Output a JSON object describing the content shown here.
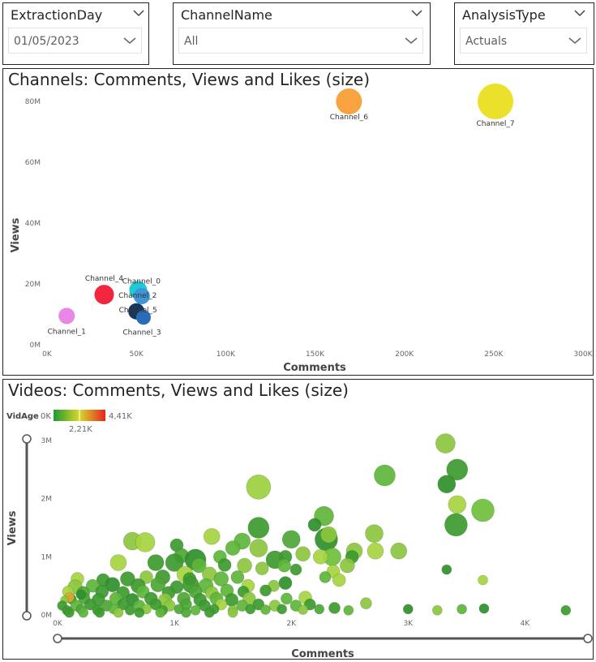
{
  "slicers": [
    {
      "title": "ExtractionDay",
      "value": "01/05/2023"
    },
    {
      "title": "ChannelName",
      "value": "All"
    },
    {
      "title": "AnalysisType",
      "value": "Actuals"
    }
  ],
  "chart1": {
    "title": "Channels: Comments, Views and Likes (size)"
  },
  "chart2": {
    "title": "Videos: Comments, Views and Likes (size)",
    "legend": {
      "field": "VidAge",
      "min_label": "0K",
      "mid_label": "2,21K",
      "max_label": "4,41K"
    }
  },
  "chart_data": [
    {
      "type": "scatter",
      "title": "Channels: Comments, Views and Likes (size)",
      "xlabel": "Comments",
      "ylabel": "Views",
      "xlim": [
        0,
        300000
      ],
      "ylim": [
        0,
        80000000
      ],
      "x_ticks": [
        "0K",
        "50K",
        "100K",
        "150K",
        "200K",
        "250K",
        "300K"
      ],
      "y_ticks": [
        "0M",
        "20M",
        "40M",
        "60M",
        "80M"
      ],
      "points": [
        {
          "label": "Channel_1",
          "x": 11000,
          "y": 9500000,
          "size": 10,
          "color": "#e986e6"
        },
        {
          "label": "Channel_4",
          "x": 32000,
          "y": 16500000,
          "size": 12,
          "color": "#f2263f"
        },
        {
          "label": "Channel_0",
          "x": 51000,
          "y": 18000000,
          "size": 11,
          "color": "#1fc9d6"
        },
        {
          "label": "Channel_2",
          "x": 53000,
          "y": 16000000,
          "size": 10,
          "color": "#3f95d6"
        },
        {
          "label": "Channel_5",
          "x": 50000,
          "y": 11000000,
          "size": 10,
          "color": "#17375a"
        },
        {
          "label": "Channel_3",
          "x": 54000,
          "y": 9000000,
          "size": 9,
          "color": "#2a6cb8"
        },
        {
          "label": "Channel_6",
          "x": 169000,
          "y": 80000000,
          "size": 16,
          "color": "#f7a340"
        },
        {
          "label": "Channel_7",
          "x": 251000,
          "y": 80000000,
          "size": 22,
          "color": "#ebe02a"
        }
      ]
    },
    {
      "type": "scatter",
      "title": "Videos: Comments, Views and Likes (size)",
      "xlabel": "Comments",
      "ylabel": "Views",
      "xlim": [
        0,
        4400
      ],
      "ylim": [
        0,
        3000000
      ],
      "x_ticks": [
        "0K",
        "1K",
        "2K",
        "3K",
        "4K"
      ],
      "y_ticks": [
        "0M",
        "1M",
        "2M",
        "3M"
      ],
      "color_field": "VidAge",
      "points": [
        {
          "x": 3320,
          "y": 2950000,
          "r": 12,
          "c": "#8cc63f"
        },
        {
          "x": 3420,
          "y": 2500000,
          "r": 13,
          "c": "#3c9a2e"
        },
        {
          "x": 2800,
          "y": 2400000,
          "r": 13,
          "c": "#5db53a"
        },
        {
          "x": 3330,
          "y": 2250000,
          "r": 11,
          "c": "#2f8f2b"
        },
        {
          "x": 1720,
          "y": 2200000,
          "r": 15,
          "c": "#9ccf3f"
        },
        {
          "x": 3420,
          "y": 1900000,
          "r": 11,
          "c": "#a6d440"
        },
        {
          "x": 3640,
          "y": 1800000,
          "r": 14,
          "c": "#6fbf3d"
        },
        {
          "x": 2280,
          "y": 1700000,
          "r": 12,
          "c": "#5fb53b"
        },
        {
          "x": 3410,
          "y": 1550000,
          "r": 14,
          "c": "#3c9a2e"
        },
        {
          "x": 1720,
          "y": 1500000,
          "r": 13,
          "c": "#3c9a2e"
        },
        {
          "x": 2200,
          "y": 1550000,
          "r": 8,
          "c": "#2f8f2b"
        },
        {
          "x": 2710,
          "y": 1400000,
          "r": 11,
          "c": "#8cc63f"
        },
        {
          "x": 1320,
          "y": 1350000,
          "r": 10,
          "c": "#a6d440"
        },
        {
          "x": 2000,
          "y": 1300000,
          "r": 11,
          "c": "#4da636"
        },
        {
          "x": 2300,
          "y": 1300000,
          "r": 14,
          "c": "#2f8f2b"
        },
        {
          "x": 2320,
          "y": 1380000,
          "r": 10,
          "c": "#8cc63f"
        },
        {
          "x": 1580,
          "y": 1270000,
          "r": 10,
          "c": "#5db53a"
        },
        {
          "x": 640,
          "y": 1270000,
          "r": 11,
          "c": "#8cc63f"
        },
        {
          "x": 750,
          "y": 1250000,
          "r": 12,
          "c": "#a6d440"
        },
        {
          "x": 1020,
          "y": 1200000,
          "r": 8,
          "c": "#3c9a2e"
        },
        {
          "x": 1500,
          "y": 1150000,
          "r": 9,
          "c": "#5db53a"
        },
        {
          "x": 1720,
          "y": 1150000,
          "r": 11,
          "c": "#8cc63f"
        },
        {
          "x": 2540,
          "y": 1100000,
          "r": 10,
          "c": "#8cc63f"
        },
        {
          "x": 2720,
          "y": 1100000,
          "r": 10,
          "c": "#a6d440"
        },
        {
          "x": 2920,
          "y": 1100000,
          "r": 10,
          "c": "#8cc63f"
        },
        {
          "x": 1060,
          "y": 1020000,
          "r": 9,
          "c": "#4da636"
        },
        {
          "x": 1180,
          "y": 950000,
          "r": 13,
          "c": "#2f8f2b"
        },
        {
          "x": 1390,
          "y": 1000000,
          "r": 8,
          "c": "#5db53a"
        },
        {
          "x": 1950,
          "y": 1000000,
          "r": 8,
          "c": "#3c9a2e"
        },
        {
          "x": 2100,
          "y": 1050000,
          "r": 9,
          "c": "#8cc63f"
        },
        {
          "x": 2350,
          "y": 1000000,
          "r": 11,
          "c": "#6fbf3d"
        },
        {
          "x": 2250,
          "y": 1000000,
          "r": 9,
          "c": "#a6d440"
        },
        {
          "x": 2520,
          "y": 1000000,
          "r": 8,
          "c": "#3c9a2e"
        },
        {
          "x": 1860,
          "y": 950000,
          "r": 11,
          "c": "#3c9a2e"
        },
        {
          "x": 840,
          "y": 900000,
          "r": 10,
          "c": "#3c9a2e"
        },
        {
          "x": 520,
          "y": 900000,
          "r": 10,
          "c": "#a6d440"
        },
        {
          "x": 1000,
          "y": 900000,
          "r": 11,
          "c": "#3c9a2e"
        },
        {
          "x": 1600,
          "y": 850000,
          "r": 9,
          "c": "#8cc63f"
        },
        {
          "x": 1430,
          "y": 860000,
          "r": 8,
          "c": "#3c9a2e"
        },
        {
          "x": 1210,
          "y": 850000,
          "r": 9,
          "c": "#5db53a"
        },
        {
          "x": 2480,
          "y": 850000,
          "r": 9,
          "c": "#8cc63f"
        },
        {
          "x": 1940,
          "y": 850000,
          "r": 8,
          "c": "#5db53a"
        },
        {
          "x": 1750,
          "y": 800000,
          "r": 8,
          "c": "#8cc63f"
        },
        {
          "x": 2040,
          "y": 780000,
          "r": 7,
          "c": "#3c9a2e"
        },
        {
          "x": 2360,
          "y": 750000,
          "r": 8,
          "c": "#a6d440"
        },
        {
          "x": 3330,
          "y": 780000,
          "r": 6,
          "c": "#2f8f2b"
        },
        {
          "x": 3640,
          "y": 600000,
          "r": 6,
          "c": "#a6d440"
        },
        {
          "x": 2290,
          "y": 650000,
          "r": 7,
          "c": "#5db53a"
        },
        {
          "x": 2410,
          "y": 600000,
          "r": 8,
          "c": "#a6d440"
        },
        {
          "x": 1090,
          "y": 700000,
          "r": 10,
          "c": "#a6d440"
        },
        {
          "x": 1300,
          "y": 700000,
          "r": 9,
          "c": "#8cc63f"
        },
        {
          "x": 1540,
          "y": 650000,
          "r": 8,
          "c": "#5db53a"
        },
        {
          "x": 1400,
          "y": 620000,
          "r": 9,
          "c": "#5db53a"
        },
        {
          "x": 1130,
          "y": 620000,
          "r": 8,
          "c": "#3c9a2e"
        },
        {
          "x": 900,
          "y": 650000,
          "r": 9,
          "c": "#3c9a2e"
        },
        {
          "x": 760,
          "y": 650000,
          "r": 8,
          "c": "#8cc63f"
        },
        {
          "x": 600,
          "y": 620000,
          "r": 9,
          "c": "#3c9a2e"
        },
        {
          "x": 390,
          "y": 600000,
          "r": 8,
          "c": "#3c9a2e"
        },
        {
          "x": 170,
          "y": 620000,
          "r": 8,
          "c": "#a6d440"
        },
        {
          "x": 1950,
          "y": 550000,
          "r": 8,
          "c": "#2f8f2b"
        },
        {
          "x": 1850,
          "y": 500000,
          "r": 7,
          "c": "#8cc63f"
        },
        {
          "x": 1630,
          "y": 500000,
          "r": 8,
          "c": "#a6d440"
        },
        {
          "x": 1270,
          "y": 500000,
          "r": 9,
          "c": "#5db53a"
        },
        {
          "x": 1140,
          "y": 520000,
          "r": 10,
          "c": "#3c9a2e"
        },
        {
          "x": 1020,
          "y": 480000,
          "r": 8,
          "c": "#3c9a2e"
        },
        {
          "x": 860,
          "y": 520000,
          "r": 9,
          "c": "#4da636"
        },
        {
          "x": 690,
          "y": 500000,
          "r": 9,
          "c": "#3c9a2e"
        },
        {
          "x": 470,
          "y": 520000,
          "r": 9,
          "c": "#2f8f2b"
        },
        {
          "x": 300,
          "y": 500000,
          "r": 8,
          "c": "#5db53a"
        },
        {
          "x": 150,
          "y": 480000,
          "r": 9,
          "c": "#8cc63f"
        },
        {
          "x": 1450,
          "y": 420000,
          "r": 8,
          "c": "#5db53a"
        },
        {
          "x": 1590,
          "y": 400000,
          "r": 7,
          "c": "#3c9a2e"
        },
        {
          "x": 1780,
          "y": 420000,
          "r": 7,
          "c": "#3c9a2e"
        },
        {
          "x": 1320,
          "y": 380000,
          "r": 8,
          "c": "#8cc63f"
        },
        {
          "x": 1180,
          "y": 400000,
          "r": 8,
          "c": "#4da636"
        },
        {
          "x": 950,
          "y": 380000,
          "r": 8,
          "c": "#3c9a2e"
        },
        {
          "x": 730,
          "y": 400000,
          "r": 8,
          "c": "#5db53a"
        },
        {
          "x": 560,
          "y": 380000,
          "r": 8,
          "c": "#3c9a2e"
        },
        {
          "x": 380,
          "y": 400000,
          "r": 8,
          "c": "#3c9a2e"
        },
        {
          "x": 220,
          "y": 380000,
          "r": 8,
          "c": "#4da636"
        },
        {
          "x": 90,
          "y": 400000,
          "r": 7,
          "c": "#a6d440"
        },
        {
          "x": 2120,
          "y": 300000,
          "r": 8,
          "c": "#a6d440"
        },
        {
          "x": 1960,
          "y": 280000,
          "r": 7,
          "c": "#5db53a"
        },
        {
          "x": 1640,
          "y": 280000,
          "r": 8,
          "c": "#8cc63f"
        },
        {
          "x": 1490,
          "y": 260000,
          "r": 8,
          "c": "#3c9a2e"
        },
        {
          "x": 1360,
          "y": 280000,
          "r": 8,
          "c": "#5db53a"
        },
        {
          "x": 1220,
          "y": 260000,
          "r": 8,
          "c": "#3c9a2e"
        },
        {
          "x": 1080,
          "y": 280000,
          "r": 8,
          "c": "#4da636"
        },
        {
          "x": 920,
          "y": 260000,
          "r": 8,
          "c": "#8cc63f"
        },
        {
          "x": 800,
          "y": 280000,
          "r": 8,
          "c": "#3c9a2e"
        },
        {
          "x": 640,
          "y": 260000,
          "r": 8,
          "c": "#2f8f2b"
        },
        {
          "x": 500,
          "y": 280000,
          "r": 8,
          "c": "#5db53a"
        },
        {
          "x": 350,
          "y": 260000,
          "r": 8,
          "c": "#3c9a2e"
        },
        {
          "x": 230,
          "y": 280000,
          "r": 7,
          "c": "#4da636"
        },
        {
          "x": 120,
          "y": 270000,
          "r": 6,
          "c": "#3c9a2e"
        },
        {
          "x": 200,
          "y": 350000,
          "r": 6,
          "c": "#2f8f2b"
        },
        {
          "x": 100,
          "y": 300000,
          "r": 6,
          "c": "#e3a532"
        },
        {
          "x": 60,
          "y": 260000,
          "r": 5,
          "c": "#8cc63f"
        },
        {
          "x": 2640,
          "y": 200000,
          "r": 7,
          "c": "#8cc63f"
        },
        {
          "x": 2160,
          "y": 180000,
          "r": 7,
          "c": "#3c9a2e"
        },
        {
          "x": 2040,
          "y": 160000,
          "r": 7,
          "c": "#5db53a"
        },
        {
          "x": 1860,
          "y": 160000,
          "r": 7,
          "c": "#8cc63f"
        },
        {
          "x": 1720,
          "y": 180000,
          "r": 7,
          "c": "#3c9a2e"
        },
        {
          "x": 1580,
          "y": 160000,
          "r": 7,
          "c": "#5db53a"
        },
        {
          "x": 1400,
          "y": 180000,
          "r": 7,
          "c": "#a6d440"
        },
        {
          "x": 1260,
          "y": 160000,
          "r": 7,
          "c": "#3c9a2e"
        },
        {
          "x": 1100,
          "y": 180000,
          "r": 7,
          "c": "#4da636"
        },
        {
          "x": 960,
          "y": 160000,
          "r": 7,
          "c": "#8cc63f"
        },
        {
          "x": 840,
          "y": 180000,
          "r": 7,
          "c": "#3c9a2e"
        },
        {
          "x": 700,
          "y": 160000,
          "r": 7,
          "c": "#5db53a"
        },
        {
          "x": 560,
          "y": 180000,
          "r": 7,
          "c": "#3c9a2e"
        },
        {
          "x": 420,
          "y": 160000,
          "r": 7,
          "c": "#4da636"
        },
        {
          "x": 280,
          "y": 180000,
          "r": 7,
          "c": "#3c9a2e"
        },
        {
          "x": 160,
          "y": 160000,
          "r": 7,
          "c": "#5db53a"
        },
        {
          "x": 40,
          "y": 160000,
          "r": 6,
          "c": "#3c9a2e"
        },
        {
          "x": 2370,
          "y": 120000,
          "r": 7,
          "c": "#3c9a2e"
        },
        {
          "x": 2490,
          "y": 80000,
          "r": 6,
          "c": "#5db53a"
        },
        {
          "x": 3000,
          "y": 100000,
          "r": 6,
          "c": "#2f8f2b"
        },
        {
          "x": 3250,
          "y": 80000,
          "r": 6,
          "c": "#8cc63f"
        },
        {
          "x": 3460,
          "y": 100000,
          "r": 6,
          "c": "#5db53a"
        },
        {
          "x": 3650,
          "y": 110000,
          "r": 6,
          "c": "#2f8f2b"
        },
        {
          "x": 4350,
          "y": 80000,
          "r": 6,
          "c": "#3c9a2e"
        },
        {
          "x": 2240,
          "y": 100000,
          "r": 6,
          "c": "#4da636"
        },
        {
          "x": 2100,
          "y": 90000,
          "r": 6,
          "c": "#8cc63f"
        },
        {
          "x": 1920,
          "y": 100000,
          "r": 6,
          "c": "#3c9a2e"
        },
        {
          "x": 1780,
          "y": 90000,
          "r": 6,
          "c": "#5db53a"
        },
        {
          "x": 1650,
          "y": 100000,
          "r": 6,
          "c": "#3c9a2e"
        },
        {
          "x": 1500,
          "y": 80000,
          "r": 6,
          "c": "#8cc63f"
        },
        {
          "x": 1340,
          "y": 100000,
          "r": 6,
          "c": "#3c9a2e"
        },
        {
          "x": 1180,
          "y": 80000,
          "r": 6,
          "c": "#5db53a"
        },
        {
          "x": 1040,
          "y": 100000,
          "r": 6,
          "c": "#4da636"
        },
        {
          "x": 900,
          "y": 80000,
          "r": 6,
          "c": "#3c9a2e"
        },
        {
          "x": 760,
          "y": 100000,
          "r": 6,
          "c": "#8cc63f"
        },
        {
          "x": 620,
          "y": 80000,
          "r": 6,
          "c": "#3c9a2e"
        },
        {
          "x": 480,
          "y": 100000,
          "r": 6,
          "c": "#5db53a"
        },
        {
          "x": 340,
          "y": 80000,
          "r": 6,
          "c": "#3c9a2e"
        },
        {
          "x": 200,
          "y": 100000,
          "r": 6,
          "c": "#4da636"
        },
        {
          "x": 80,
          "y": 80000,
          "r": 6,
          "c": "#3c9a2e"
        },
        {
          "x": 880,
          "y": 40000,
          "r": 6,
          "c": "#5db53a"
        },
        {
          "x": 700,
          "y": 40000,
          "r": 6,
          "c": "#3c9a2e"
        },
        {
          "x": 520,
          "y": 40000,
          "r": 6,
          "c": "#8cc63f"
        },
        {
          "x": 360,
          "y": 40000,
          "r": 6,
          "c": "#3c9a2e"
        },
        {
          "x": 220,
          "y": 40000,
          "r": 6,
          "c": "#5db53a"
        },
        {
          "x": 100,
          "y": 40000,
          "r": 6,
          "c": "#3c9a2e"
        },
        {
          "x": 1100,
          "y": 40000,
          "r": 6,
          "c": "#4da636"
        },
        {
          "x": 1300,
          "y": 40000,
          "r": 6,
          "c": "#3c9a2e"
        },
        {
          "x": 1500,
          "y": 40000,
          "r": 6,
          "c": "#8cc63f"
        }
      ]
    }
  ]
}
